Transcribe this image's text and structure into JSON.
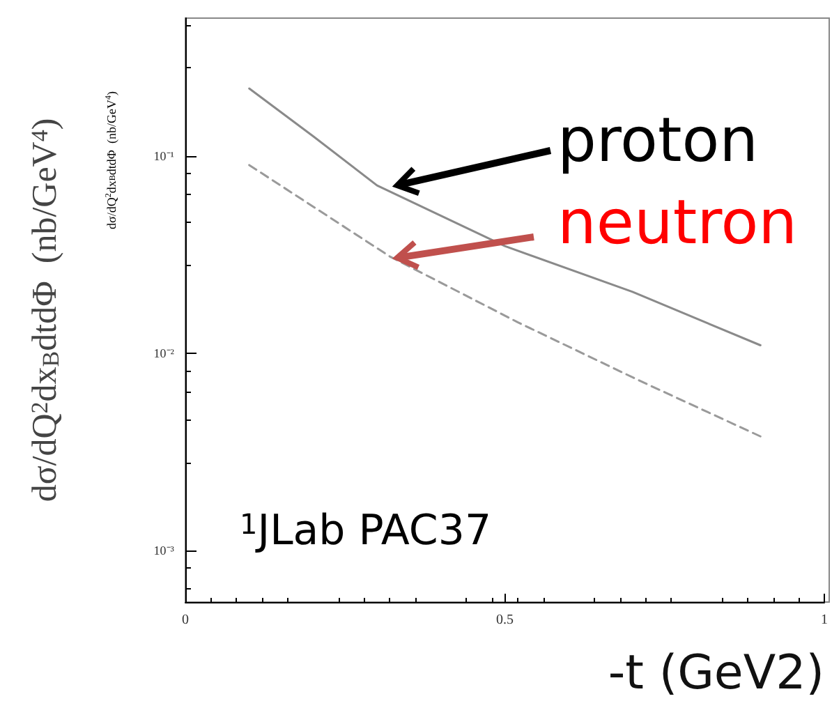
{
  "chart_data": {
    "type": "line",
    "xlabel": "-t (GeV2)",
    "ylabel": "dσ/dQ$^{2}$dx$_{B}$dtdΦ  (nb/GeV$^{4}$)",
    "annotations": [
      "dσ/dQ$^{2}$dx$_{B}$dtdΦ  (nb/GeV$^{4}$)",
      "$^{1}$JLab PAC37"
    ],
    "series": [
      {
        "name": "proton",
        "color": "#8a8a8a",
        "line_style": "solid",
        "x": [
          0.1,
          0.2,
          0.3,
          0.5,
          0.7,
          0.9
        ],
        "values": [
          0.22,
          0.126,
          0.071,
          0.035,
          0.0205,
          0.011
        ]
      },
      {
        "name": "neutron",
        "color": "#9a9a9a",
        "line_style": "dashed",
        "x": [
          0.1,
          0.32,
          0.52,
          0.71,
          0.9
        ],
        "values": [
          0.09,
          0.031,
          0.0144,
          0.0073,
          0.0038
        ]
      }
    ],
    "xlim": [
      0,
      1
    ],
    "xticks": [
      0,
      0.5,
      1
    ],
    "ylim": [
      0.00055,
      0.5
    ],
    "yticks": [
      {
        "value": 0.1,
        "label": "10⁻¹"
      },
      {
        "value": 0.01,
        "label": "10⁻²"
      },
      {
        "value": 0.001,
        "label": "10⁻³"
      }
    ],
    "log": true,
    "grid": false,
    "legend": false,
    "marker": "none"
  }
}
